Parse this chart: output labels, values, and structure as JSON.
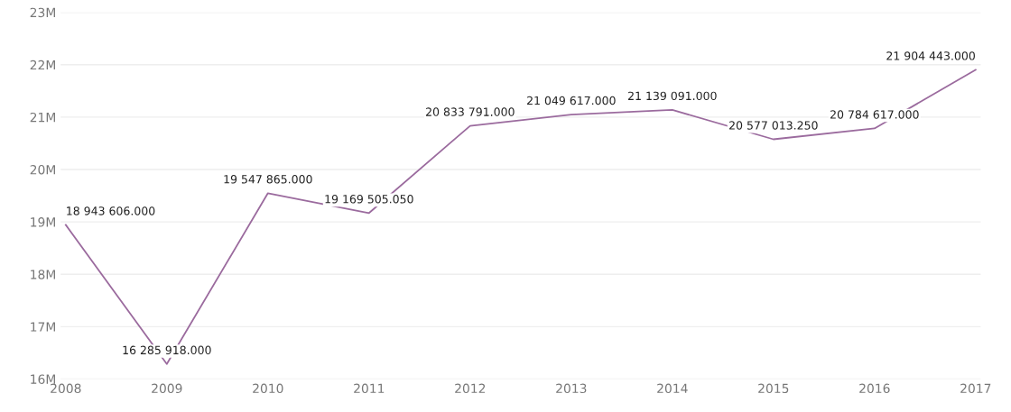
{
  "chart_data": {
    "type": "line",
    "categories": [
      "2008",
      "2009",
      "2010",
      "2011",
      "2012",
      "2013",
      "2014",
      "2015",
      "2016",
      "2017"
    ],
    "series": [
      {
        "color": "#9b6b9e",
        "values": [
          18943606,
          16285918,
          19547865,
          19169505.05,
          20833791,
          21049617,
          21139091,
          20577013.25,
          20784617,
          21904443
        ],
        "value_labels": [
          "18 943 606.000",
          "16 285 918.000",
          "19 547 865.000",
          "19 169 505.050",
          "20 833 791.000",
          "21 049 617.000",
          "21 139 091.000",
          "20 577 013.250",
          "20 784 617.000",
          "21 904 443.000"
        ]
      }
    ],
    "ylim": [
      16000000,
      23000000
    ],
    "yticks": [
      {
        "value": 16000000,
        "label": "16M"
      },
      {
        "value": 17000000,
        "label": "17M"
      },
      {
        "value": 18000000,
        "label": "18M"
      },
      {
        "value": 19000000,
        "label": "19M"
      },
      {
        "value": 20000000,
        "label": "20M"
      },
      {
        "value": 21000000,
        "label": "21M"
      },
      {
        "value": 22000000,
        "label": "22M"
      },
      {
        "value": 23000000,
        "label": "23M"
      }
    ],
    "grid": "y",
    "marker": "none",
    "line_style": "solid"
  }
}
